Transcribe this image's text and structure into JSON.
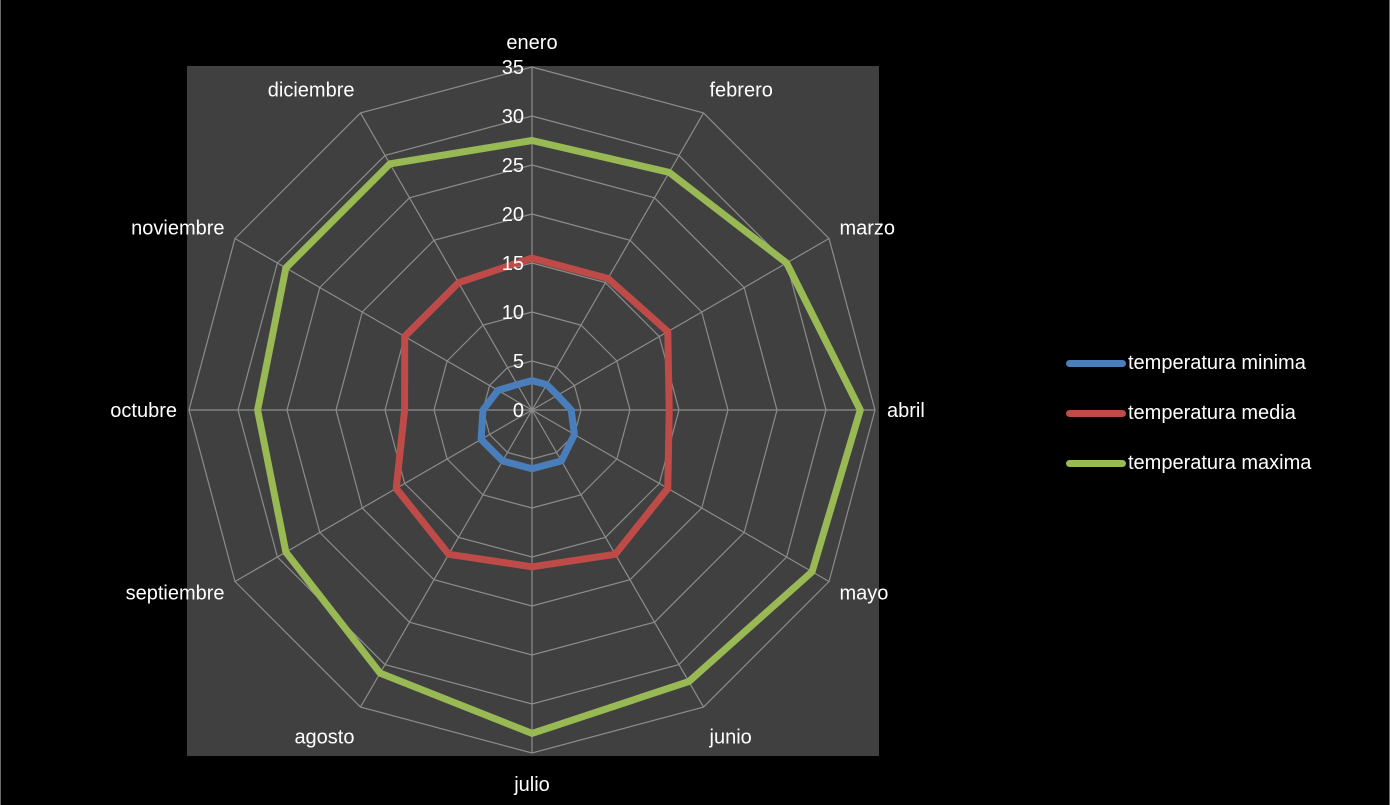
{
  "chart_data": {
    "type": "radar",
    "categories": [
      "enero",
      "febrero",
      "marzo",
      "abril",
      "mayo",
      "junio",
      "julio",
      "agosto",
      "septiembre",
      "octubre",
      "noviembre",
      "diciembre"
    ],
    "rmin": 0,
    "rmax": 35,
    "ticks": [
      "0",
      "5",
      "10",
      "15",
      "20",
      "25",
      "30",
      "35"
    ],
    "tick_step": 5,
    "grid": true,
    "legend_position": "right",
    "series": [
      {
        "name": "temperatura minima",
        "color": "#4a7ebb",
        "values": [
          3,
          3,
          3,
          4,
          5,
          6,
          6,
          6,
          6,
          5,
          4,
          3
        ]
      },
      {
        "name": "temperatura media",
        "color": "#be4b48",
        "values": [
          15.5,
          15.5,
          16,
          14,
          16,
          17,
          16,
          17,
          16,
          13,
          15,
          15
        ]
      },
      {
        "name": "temperatura maxima",
        "color": "#98b954",
        "values": [
          27.5,
          28,
          30,
          33.5,
          33,
          32,
          33,
          31,
          29,
          28,
          29,
          29
        ]
      }
    ]
  }
}
